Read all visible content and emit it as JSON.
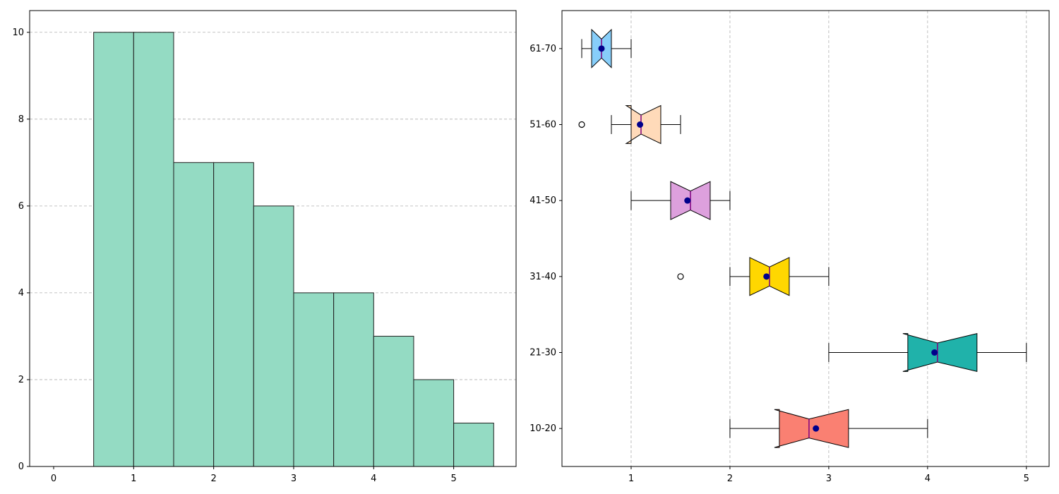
{
  "chart_data": [
    {
      "type": "bar",
      "subtype": "histogram",
      "bin_edges": [
        0.5,
        1.0,
        1.5,
        2.0,
        2.5,
        3.0,
        3.5,
        4.0,
        4.5,
        5.0,
        5.5
      ],
      "counts": [
        10,
        10,
        7,
        7,
        6,
        4,
        4,
        3,
        2,
        1
      ],
      "xlim": [
        -0.3,
        5.78
      ],
      "ylim": [
        0,
        10.5
      ],
      "xticks": [
        "0",
        "1",
        "2",
        "3",
        "4",
        "5"
      ],
      "yticks": [
        "0",
        "2",
        "4",
        "6",
        "8",
        "10"
      ],
      "grid": "y",
      "title": "",
      "xlabel": "",
      "ylabel": "",
      "color": "#94dbc3"
    },
    {
      "type": "boxplot",
      "orientation": "horizontal",
      "notched": true,
      "categories": [
        "10-20",
        "21-30",
        "31-40",
        "41-50",
        "51-60",
        "61-70"
      ],
      "series": [
        {
          "name": "10-20",
          "whisker_low": 2.0,
          "q1": 2.5,
          "median": 2.8,
          "q3": 3.2,
          "whisker_high": 4.0,
          "notch_low": 2.45,
          "notch_high": 3.2,
          "mean": 2.87,
          "outliers": [],
          "color": "#fa8072"
        },
        {
          "name": "21-30",
          "whisker_low": 3.0,
          "q1": 3.8,
          "median": 4.1,
          "q3": 4.5,
          "whisker_high": 5.0,
          "notch_low": 3.75,
          "notch_high": 4.5,
          "mean": 4.07,
          "outliers": [],
          "color": "#20b2aa"
        },
        {
          "name": "31-40",
          "whisker_low": 2.0,
          "q1": 2.2,
          "median": 2.4,
          "q3": 2.6,
          "whisker_high": 3.0,
          "notch_low": 2.2,
          "notch_high": 2.6,
          "mean": 2.37,
          "outliers": [
            1.5
          ],
          "color": "#ffd700"
        },
        {
          "name": "41-50",
          "whisker_low": 1.0,
          "q1": 1.4,
          "median": 1.6,
          "q3": 1.8,
          "whisker_high": 2.0,
          "notch_low": 1.4,
          "notch_high": 1.8,
          "mean": 1.57,
          "outliers": [],
          "color": "#dda0dd"
        },
        {
          "name": "51-60",
          "whisker_low": 0.8,
          "q1": 1.0,
          "median": 1.1,
          "q3": 1.3,
          "whisker_high": 1.5,
          "notch_low": 0.95,
          "notch_high": 1.3,
          "mean": 1.09,
          "outliers": [
            0.5
          ],
          "color": "#ffdab9"
        },
        {
          "name": "61-70",
          "whisker_low": 0.5,
          "q1": 0.6,
          "median": 0.7,
          "q3": 0.8,
          "whisker_high": 1.0,
          "notch_low": 0.6,
          "notch_high": 0.8,
          "mean": 0.7,
          "outliers": [],
          "color": "#87cefa"
        }
      ],
      "xlim": [
        0.3,
        5.23
      ],
      "xticks": [
        "1",
        "2",
        "3",
        "4",
        "5"
      ],
      "grid": "x",
      "mean_marker_color": "#00008b",
      "median_color": "#800080",
      "title": "",
      "xlabel": "",
      "ylabel": ""
    }
  ]
}
